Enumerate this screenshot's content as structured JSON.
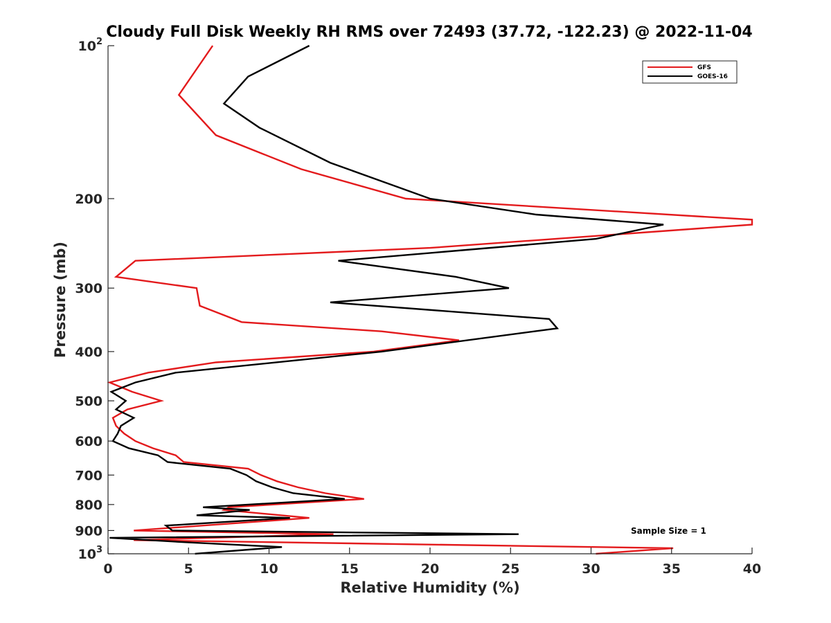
{
  "chart_data": {
    "type": "line",
    "title": "Cloudy Full Disk Weekly RH RMS over 72493 (37.72, -122.23) @ 2022-11-04",
    "xlabel": "Relative Humidity (%)",
    "ylabel": "Pressure (mb)",
    "xlim": [
      0,
      40
    ],
    "ylim": [
      100,
      1000
    ],
    "yscale": "log",
    "y_reversed": true,
    "grid": false,
    "legend_position": "top-right",
    "x_ticks": [
      "0",
      "5",
      "10",
      "15",
      "20",
      "25",
      "30",
      "35",
      "40"
    ],
    "y_ticks": [
      {
        "value": 100,
        "base": "10",
        "exp": "2"
      },
      {
        "value": 200,
        "label": "200"
      },
      {
        "value": 300,
        "label": "300"
      },
      {
        "value": 400,
        "label": "400"
      },
      {
        "value": 500,
        "label": "500"
      },
      {
        "value": 600,
        "label": "600"
      },
      {
        "value": 700,
        "label": "700"
      },
      {
        "value": 800,
        "label": "800"
      },
      {
        "value": 900,
        "label": "900"
      },
      {
        "value": 1000,
        "base": "10",
        "exp": "3"
      }
    ],
    "annotation": "Sample Size = 1",
    "series": [
      {
        "name": "GFS",
        "color": "#e31a1c",
        "points": [
          [
            6.5,
            100
          ],
          [
            4.4,
            125
          ],
          [
            6.7,
            150
          ],
          [
            12.0,
            175
          ],
          [
            18.5,
            200
          ],
          [
            40.0,
            220
          ],
          [
            40.0,
            225
          ],
          [
            20.0,
            250
          ],
          [
            1.7,
            265
          ],
          [
            0.5,
            285
          ],
          [
            5.5,
            300
          ],
          [
            5.7,
            325
          ],
          [
            8.3,
            350
          ],
          [
            17.0,
            365
          ],
          [
            21.8,
            380
          ],
          [
            16.5,
            400
          ],
          [
            6.7,
            420
          ],
          [
            2.5,
            440
          ],
          [
            0.1,
            460
          ],
          [
            1.5,
            480
          ],
          [
            3.3,
            500
          ],
          [
            1.2,
            520
          ],
          [
            0.3,
            540
          ],
          [
            0.5,
            560
          ],
          [
            1.0,
            580
          ],
          [
            1.7,
            600
          ],
          [
            2.8,
            620
          ],
          [
            4.2,
            640
          ],
          [
            4.7,
            660
          ],
          [
            8.7,
            680
          ],
          [
            9.5,
            700
          ],
          [
            10.5,
            720
          ],
          [
            11.8,
            740
          ],
          [
            13.5,
            760
          ],
          [
            15.9,
            780
          ],
          [
            7.5,
            810
          ],
          [
            7.2,
            820
          ],
          [
            12.5,
            850
          ],
          [
            1.6,
            900
          ],
          [
            14.0,
            915
          ],
          [
            1.6,
            940
          ],
          [
            35.1,
            975
          ],
          [
            30.3,
            1000
          ]
        ]
      },
      {
        "name": "GOES-16",
        "color": "#000000",
        "points": [
          [
            12.5,
            100
          ],
          [
            8.7,
            115
          ],
          [
            7.2,
            130
          ],
          [
            9.4,
            145
          ],
          [
            13.8,
            170
          ],
          [
            20.0,
            200
          ],
          [
            26.6,
            215
          ],
          [
            34.5,
            225
          ],
          [
            30.3,
            240
          ],
          [
            14.3,
            265
          ],
          [
            21.6,
            285
          ],
          [
            24.9,
            300
          ],
          [
            13.8,
            320
          ],
          [
            27.4,
            345
          ],
          [
            27.9,
            360
          ],
          [
            17.0,
            400
          ],
          [
            4.2,
            440
          ],
          [
            1.7,
            460
          ],
          [
            0.2,
            480
          ],
          [
            1.1,
            500
          ],
          [
            0.5,
            520
          ],
          [
            1.6,
            540
          ],
          [
            0.8,
            560
          ],
          [
            0.6,
            580
          ],
          [
            0.3,
            600
          ],
          [
            1.3,
            620
          ],
          [
            3.1,
            640
          ],
          [
            3.7,
            660
          ],
          [
            7.6,
            680
          ],
          [
            8.6,
            700
          ],
          [
            9.2,
            720
          ],
          [
            10.2,
            740
          ],
          [
            11.5,
            760
          ],
          [
            14.7,
            780
          ],
          [
            5.9,
            810
          ],
          [
            8.8,
            820
          ],
          [
            5.5,
            840
          ],
          [
            11.3,
            850
          ],
          [
            3.6,
            880
          ],
          [
            4.0,
            900
          ],
          [
            25.5,
            915
          ],
          [
            0.1,
            930
          ],
          [
            5.0,
            950
          ],
          [
            10.8,
            970
          ],
          [
            5.4,
            1000
          ]
        ]
      }
    ]
  }
}
